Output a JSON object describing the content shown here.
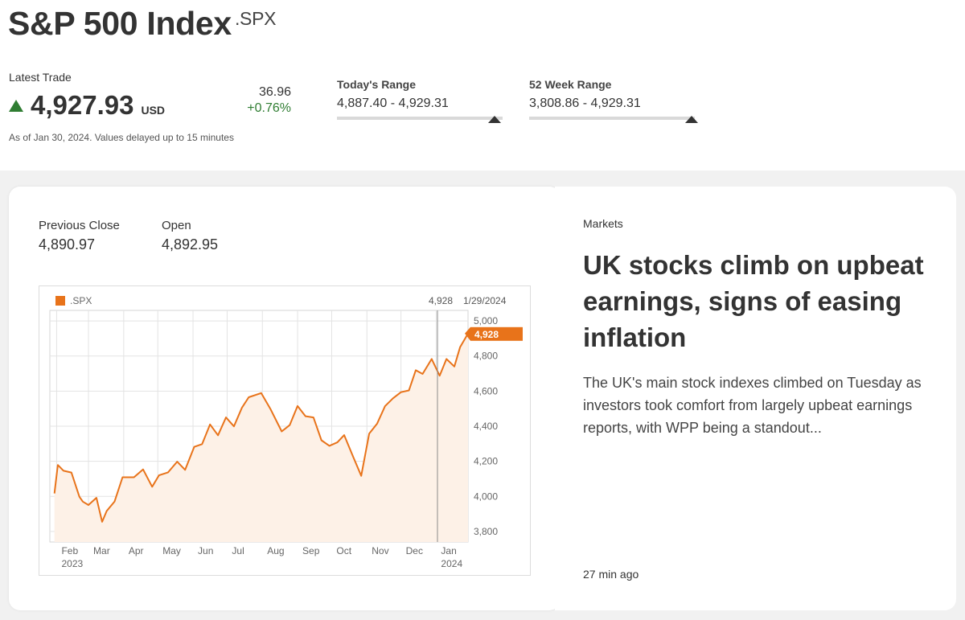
{
  "quote": {
    "name": "S&P 500 Index",
    "ticker": ".SPX",
    "latest_label": "Latest Trade",
    "price": "4,927.93",
    "currency": "USD",
    "change_abs": "36.96",
    "change_pct": "+0.76%",
    "as_of": "As of Jan 30, 2024. Values delayed up to 15 minutes",
    "todays_range": {
      "label": "Today's Range",
      "value": "4,887.40 - 4,929.31",
      "position": 0.95
    },
    "week52_range": {
      "label": "52 Week Range",
      "value": "3,808.86 - 4,929.31",
      "position": 0.98
    },
    "colors": {
      "up": "#2f7d32",
      "series": "#e8731a"
    }
  },
  "stats": {
    "previous_close_label": "Previous Close",
    "previous_close": "4,890.97",
    "open_label": "Open",
    "open": "4,892.95"
  },
  "chart_data": {
    "type": "area",
    "legend": ".SPX",
    "legend_position": "top-left",
    "last_value_label": "4,928",
    "last_date_label": "1/29/2024",
    "y_ticks": [
      "5,000",
      "4,800",
      "4,600",
      "4,400",
      "4,200",
      "4,000",
      "3,800"
    ],
    "x_ticks": [
      [
        "Feb",
        "2023"
      ],
      [
        "Mar",
        ""
      ],
      [
        "Apr",
        ""
      ],
      [
        "May",
        ""
      ],
      [
        "Jun",
        ""
      ],
      [
        "Jul",
        ""
      ],
      [
        "Aug",
        ""
      ],
      [
        "Sep",
        ""
      ],
      [
        "Oct",
        ""
      ],
      [
        "Nov",
        ""
      ],
      [
        "Dec",
        ""
      ],
      [
        "Jan",
        "2024"
      ]
    ],
    "ylim": [
      3740,
      5060
    ],
    "grid": true,
    "series": [
      {
        "name": ".SPX",
        "x": [
          "2023-01-30",
          "2023-02-02",
          "2023-02-07",
          "2023-02-14",
          "2023-02-21",
          "2023-02-24",
          "2023-03-01",
          "2023-03-08",
          "2023-03-13",
          "2023-03-17",
          "2023-03-24",
          "2023-03-31",
          "2023-04-10",
          "2023-04-18",
          "2023-04-26",
          "2023-05-02",
          "2023-05-10",
          "2023-05-18",
          "2023-05-25",
          "2023-06-02",
          "2023-06-09",
          "2023-06-16",
          "2023-06-23",
          "2023-06-30",
          "2023-07-07",
          "2023-07-14",
          "2023-07-20",
          "2023-07-31",
          "2023-08-08",
          "2023-08-18",
          "2023-08-25",
          "2023-09-01",
          "2023-09-08",
          "2023-09-15",
          "2023-09-22",
          "2023-09-29",
          "2023-10-06",
          "2023-10-12",
          "2023-10-20",
          "2023-10-27",
          "2023-11-03",
          "2023-11-10",
          "2023-11-17",
          "2023-11-24",
          "2023-12-01",
          "2023-12-08",
          "2023-12-14",
          "2023-12-20",
          "2023-12-28",
          "2024-01-04",
          "2024-01-10",
          "2024-01-17",
          "2024-01-22",
          "2024-01-29"
        ],
        "values": [
          4017,
          4179,
          4146,
          4136,
          3998,
          3970,
          3951,
          3992,
          3855,
          3917,
          3971,
          4109,
          4109,
          4154,
          4055,
          4120,
          4137,
          4198,
          4151,
          4282,
          4298,
          4410,
          4348,
          4450,
          4399,
          4505,
          4565,
          4589,
          4500,
          4370,
          4406,
          4515,
          4457,
          4450,
          4320,
          4288,
          4308,
          4349,
          4224,
          4117,
          4358,
          4415,
          4514,
          4559,
          4594,
          4604,
          4719,
          4698,
          4783,
          4688,
          4783,
          4740,
          4850,
          4928
        ]
      }
    ]
  },
  "news": {
    "section": "Markets",
    "title": "UK stocks climb on upbeat earnings, signs of easing inflation",
    "body": "The UK's main stock indexes climbed on Tuesday as investors took comfort from largely upbeat earnings reports, with WPP being a standout...",
    "time": "27 min ago"
  }
}
